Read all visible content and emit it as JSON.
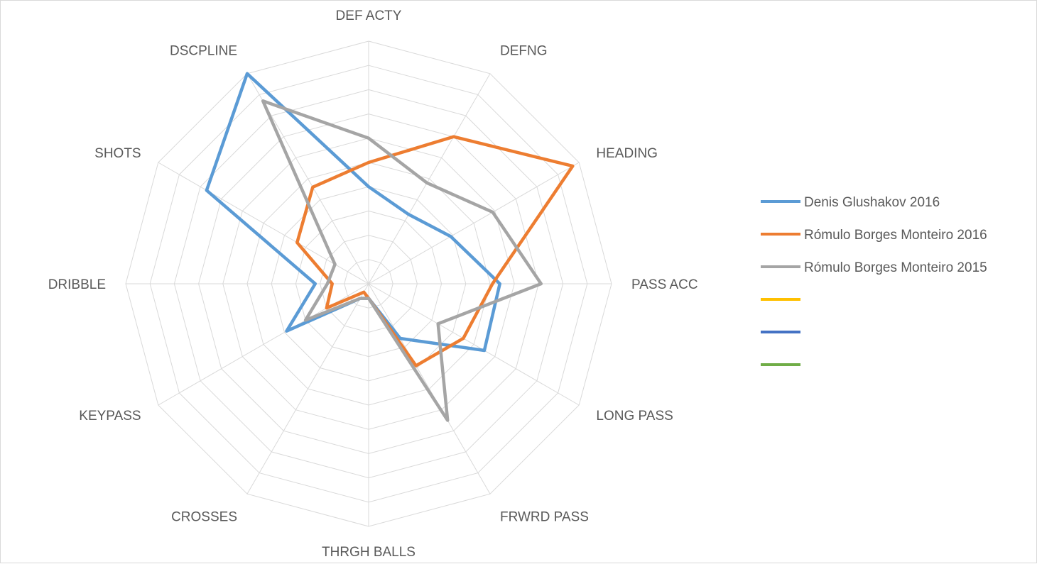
{
  "chart_data": {
    "type": "radar",
    "title": "",
    "axes": [
      "DEF ACTY",
      "DEFNG",
      "HEADING",
      "PASS ACC",
      "LONG PASS",
      "FRWRD PASS",
      "THRGH BALLS",
      "CROSSES",
      "KEYPASS",
      "DRIBBLE",
      "SHOTS",
      "DSCPLINE"
    ],
    "rlim": [
      0,
      10
    ],
    "grid": true,
    "legend_position": "right",
    "series": [
      {
        "name": "Denis Glushakov 2016",
        "color": "#5B9BD5",
        "values": [
          4.0,
          3.3,
          3.9,
          5.4,
          5.5,
          2.6,
          0.6,
          0.7,
          3.9,
          2.2,
          7.7,
          10.0
        ]
      },
      {
        "name": "Rómulo Borges Monteiro 2016",
        "color": "#ED7D31",
        "values": [
          5.0,
          7.0,
          9.7,
          5.1,
          4.5,
          3.9,
          0.6,
          0.4,
          2.0,
          1.5,
          3.4,
          4.6
        ]
      },
      {
        "name": "Rómulo Borges Monteiro 2015",
        "color": "#A5A5A5",
        "values": [
          6.0,
          4.8,
          5.9,
          7.1,
          3.3,
          6.5,
          0.6,
          0.7,
          3.0,
          1.7,
          1.6,
          8.7
        ]
      },
      {
        "name": "",
        "color": "#FFC000",
        "values": []
      },
      {
        "name": "",
        "color": "#4472C4",
        "values": []
      },
      {
        "name": "",
        "color": "#70AD47",
        "values": []
      }
    ]
  }
}
